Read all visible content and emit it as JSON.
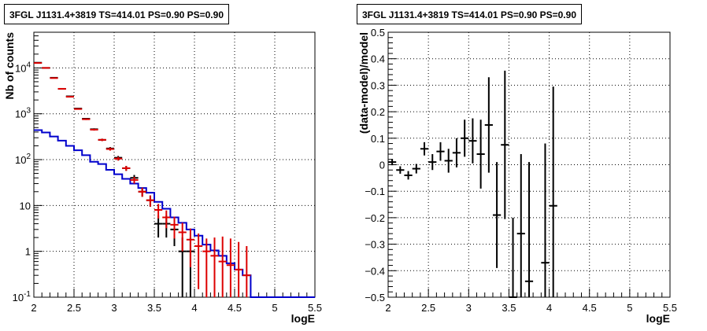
{
  "chart_data": [
    {
      "type": "scatter",
      "title": "3FGL J1131.4+3819 TS=414.01 PS=0.90 PS=0.90",
      "xlabel": "logE",
      "ylabel": "Nb of counts",
      "xlim": [
        2,
        5.5
      ],
      "ylim": [
        0.1,
        60000
      ],
      "yscale": "log",
      "grid": true,
      "xticks": [
        "2",
        "2.5",
        "3",
        "3.5",
        "4",
        "4.5",
        "5",
        "5.5"
      ],
      "yticks": [
        "10^{-1}",
        "1",
        "10",
        "10^{2}",
        "10^{3}",
        "10^{4}"
      ],
      "bin_width": 0.1,
      "series": [
        {
          "color": "#000000",
          "x": [
            2.05,
            2.15,
            2.25,
            2.35,
            2.45,
            2.55,
            2.65,
            2.75,
            2.85,
            2.95,
            3.05,
            3.15,
            3.25,
            3.35,
            3.45,
            3.55,
            3.65,
            3.75,
            3.85,
            3.95
          ],
          "y": [
            13000,
            10000,
            6100,
            3500,
            2400,
            1300,
            780,
            460,
            270,
            175,
            110,
            65,
            40,
            20,
            13,
            4,
            4,
            3,
            1,
            1
          ],
          "yerr_low": [
            150,
            120,
            80,
            60,
            50,
            35,
            28,
            21,
            16,
            13,
            10,
            8,
            6.3,
            4.5,
            3.6,
            2,
            2,
            1.7,
            1,
            1
          ],
          "yerr_high": [
            150,
            120,
            80,
            60,
            50,
            35,
            28,
            21,
            16,
            13,
            10,
            8,
            6.3,
            4.5,
            3.6,
            2,
            2,
            1.7,
            1,
            1
          ]
        },
        {
          "color": "#dd0000",
          "x": [
            2.05,
            2.15,
            2.25,
            2.35,
            2.45,
            2.55,
            2.65,
            2.75,
            2.85,
            2.95,
            3.05,
            3.15,
            3.25,
            3.35,
            3.45,
            3.55,
            3.65,
            3.75,
            3.85,
            3.95,
            4.05,
            4.15,
            4.25,
            4.35,
            4.45,
            4.55,
            4.65
          ],
          "y": [
            12800,
            10000,
            6000,
            3500,
            2350,
            1270,
            760,
            450,
            270,
            170,
            105,
            65,
            36,
            20,
            13,
            8,
            5.5,
            3.8,
            2.6,
            1.8,
            1.3,
            1.0,
            0.8,
            0.6,
            0.5,
            0.4,
            0.3
          ],
          "yerr_low": [
            150,
            120,
            80,
            60,
            50,
            35,
            28,
            21,
            16,
            13,
            10,
            8,
            6,
            4.5,
            3.6,
            2.8,
            2.3,
            1.9,
            1.6,
            1.35,
            1.15,
            0.9,
            0.7,
            0.55,
            0.45,
            0.35,
            0.25
          ],
          "yerr_high": [
            150,
            120,
            80,
            60,
            50,
            35,
            28,
            21,
            16,
            13,
            10,
            8,
            6,
            4.5,
            3.6,
            2.8,
            2.3,
            1.9,
            1.6,
            1.35,
            1.15,
            0.9,
            1.2,
            1.5,
            1.4,
            1.2,
            1.0
          ]
        }
      ],
      "model": {
        "color": "#0000cc",
        "bin_edges": [
          2.0,
          2.1,
          2.2,
          2.3,
          2.4,
          2.5,
          2.6,
          2.7,
          2.8,
          2.9,
          3.0,
          3.1,
          3.2,
          3.3,
          3.4,
          3.5,
          3.6,
          3.7,
          3.8,
          3.9,
          4.0,
          4.1,
          4.2,
          4.3,
          4.4,
          4.5,
          4.6,
          4.7,
          5.5
        ],
        "values": [
          440,
          390,
          320,
          260,
          200,
          160,
          125,
          90,
          80,
          60,
          48,
          38,
          30,
          24,
          19,
          12,
          8.5,
          5.5,
          4.2,
          3.0,
          2.2,
          1.4,
          1.05,
          0.8,
          0.55,
          0.4,
          0.3,
          0.1
        ]
      }
    },
    {
      "type": "scatter",
      "title": "3FGL J1131.4+3819 TS=414.01 PS=0.90 PS=0.90",
      "xlabel": "logE",
      "ylabel": "(data-model)/model",
      "xlim": [
        2,
        5.5
      ],
      "ylim": [
        -0.5,
        0.5
      ],
      "grid": true,
      "xticks": [
        "2",
        "2.5",
        "3",
        "3.5",
        "4",
        "4.5",
        "5",
        "5.5"
      ],
      "yticks": [
        "−0.5",
        "−0.4",
        "−0.3",
        "−0.2",
        "−0.1",
        "0",
        "0.1",
        "0.2",
        "0.3",
        "0.4",
        "0.5"
      ],
      "bin_width": 0.1,
      "series": [
        {
          "color": "#000000",
          "x": [
            2.05,
            2.15,
            2.25,
            2.35,
            2.45,
            2.55,
            2.65,
            2.75,
            2.85,
            2.95,
            3.05,
            3.15,
            3.25,
            3.35,
            3.45,
            3.55,
            3.65,
            3.75,
            3.95,
            4.05
          ],
          "y": [
            0.01,
            -0.02,
            -0.04,
            -0.015,
            0.06,
            0.01,
            0.05,
            0.015,
            0.045,
            0.1,
            0.09,
            0.04,
            0.15,
            -0.19,
            0.075,
            -0.5,
            -0.26,
            -0.44,
            -0.37,
            -0.155
          ],
          "yerr_low": [
            0.012,
            0.014,
            0.016,
            0.018,
            0.025,
            0.03,
            0.035,
            0.045,
            0.055,
            0.07,
            0.085,
            0.13,
            0.18,
            0.2,
            0.28,
            0.3,
            0.3,
            0.45,
            0.45,
            0.45
          ],
          "yerr_high": [
            0.012,
            0.014,
            0.016,
            0.018,
            0.025,
            0.03,
            0.035,
            0.045,
            0.055,
            0.07,
            0.085,
            0.13,
            0.18,
            0.2,
            0.28,
            0.3,
            0.3,
            0.45,
            0.45,
            0.45
          ]
        }
      ]
    }
  ]
}
